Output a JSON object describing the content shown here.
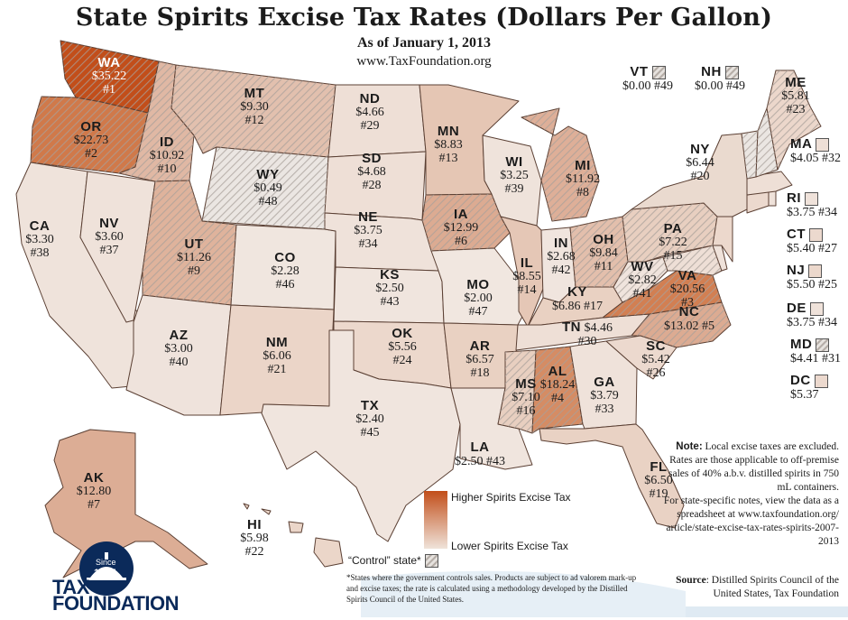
{
  "title": "State Spirits Excise Tax Rates (Dollars Per Gallon)",
  "subtitle": "As of January 1, 2013",
  "url": "www.TaxFoundation.org",
  "states": {
    "WA": {
      "ab": "WA",
      "rate": "$35.22",
      "rank": "#1",
      "color": "#c24e1a"
    },
    "OR": {
      "ab": "OR",
      "rate": "$22.73",
      "rank": "#2",
      "color": "#d0794a"
    },
    "ID": {
      "ab": "ID",
      "rate": "$10.92",
      "rank": "#10",
      "color": "#e0b8a4"
    },
    "MT": {
      "ab": "MT",
      "rate": "$9.30",
      "rank": "#12",
      "color": "#e2c0ae"
    },
    "WY": {
      "ab": "WY",
      "rate": "$0.49",
      "rank": "#48",
      "color": "#ebe6e2"
    },
    "ND": {
      "ab": "ND",
      "rate": "$4.66",
      "rank": "#29",
      "color": "#eedfd6"
    },
    "SD": {
      "ab": "SD",
      "rate": "$4.68",
      "rank": "#28",
      "color": "#eedfd6"
    },
    "NE": {
      "ab": "NE",
      "rate": "$3.75",
      "rank": "#34",
      "color": "#efe2da"
    },
    "KS": {
      "ab": "KS",
      "rate": "$2.50",
      "rank": "#43",
      "color": "#f0e5de"
    },
    "OK": {
      "ab": "OK",
      "rate": "$5.56",
      "rank": "#24",
      "color": "#ecd8cc"
    },
    "TX": {
      "ab": "TX",
      "rate": "$2.40",
      "rank": "#45",
      "color": "#f0e5de"
    },
    "CA": {
      "ab": "CA",
      "rate": "$3.30",
      "rank": "#38",
      "color": "#efe3db"
    },
    "NV": {
      "ab": "NV",
      "rate": "$3.60",
      "rank": "#37",
      "color": "#efe2da"
    },
    "UT": {
      "ab": "UT",
      "rate": "$11.26",
      "rank": "#9",
      "color": "#dfb39c"
    },
    "CO": {
      "ab": "CO",
      "rate": "$2.28",
      "rank": "#46",
      "color": "#f0e6df"
    },
    "AZ": {
      "ab": "AZ",
      "rate": "$3.00",
      "rank": "#40",
      "color": "#efe3dc"
    },
    "NM": {
      "ab": "NM",
      "rate": "$6.06",
      "rank": "#21",
      "color": "#ebd5c8"
    },
    "MN": {
      "ab": "MN",
      "rate": "$8.83",
      "rank": "#13",
      "color": "#e5c6b4"
    },
    "IA": {
      "ab": "IA",
      "rate": "$12.99",
      "rank": "#6",
      "color": "#dcab92"
    },
    "MO": {
      "ab": "MO",
      "rate": "$2.00",
      "rank": "#47",
      "color": "#f1e7e0"
    },
    "AR": {
      "ab": "AR",
      "rate": "$6.57",
      "rank": "#18",
      "color": "#e9d1c2"
    },
    "LA": {
      "ab": "LA",
      "rate": "$2.50",
      "rank": "#43",
      "color": "#f0e5de"
    },
    "WI": {
      "ab": "WI",
      "rate": "$3.25",
      "rank": "#39",
      "color": "#efe3db"
    },
    "IL": {
      "ab": "IL",
      "rate": "$8.55",
      "rank": "#14",
      "color": "#e5c7b6"
    },
    "MI": {
      "ab": "MI",
      "rate": "$11.92",
      "rank": "#8",
      "color": "#deaf98"
    },
    "IN": {
      "ab": "IN",
      "rate": "$2.68",
      "rank": "#42",
      "color": "#f0e5de"
    },
    "OH": {
      "ab": "OH",
      "rate": "$9.84",
      "rank": "#11",
      "color": "#e3bfac"
    },
    "KY": {
      "ab": "KY",
      "rate": "$6.86",
      "rank": "#17",
      "color": "#e9d1c2"
    },
    "TN": {
      "ab": "TN",
      "rate": "$4.46",
      "rank": "#30",
      "color": "#eedfd6"
    },
    "MS": {
      "ab": "MS",
      "rate": "$7.10",
      "rank": "#16",
      "color": "#e8cfc0"
    },
    "AL": {
      "ab": "AL",
      "rate": "$18.24",
      "rank": "#4",
      "color": "#d58c64"
    },
    "GA": {
      "ab": "GA",
      "rate": "$3.79",
      "rank": "#33",
      "color": "#efe2da"
    },
    "FL": {
      "ab": "FL",
      "rate": "$6.50",
      "rank": "#19",
      "color": "#e9d2c4"
    },
    "SC": {
      "ab": "SC",
      "rate": "$5.42",
      "rank": "#26",
      "color": "#ecd9ce"
    },
    "NC": {
      "ab": "NC",
      "rate": "$13.02",
      "rank": "#5",
      "color": "#dcab92"
    },
    "VA": {
      "ab": "VA",
      "rate": "$20.56",
      "rank": "#3",
      "color": "#d27f52"
    },
    "WV": {
      "ab": "WV",
      "rate": "$2.82",
      "rank": "#41",
      "color": "#f0e4dd"
    },
    "PA": {
      "ab": "PA",
      "rate": "$7.22",
      "rank": "#15",
      "color": "#e8cfc0"
    },
    "NY": {
      "ab": "NY",
      "rate": "$6.44",
      "rank": "#20",
      "color": "#eadacf"
    },
    "ME": {
      "ab": "ME",
      "rate": "$5.81",
      "rank": "#23",
      "color": "#ecd7cb"
    },
    "VT": {
      "ab": "VT",
      "rate": "$0.00",
      "rank": "#49",
      "color": "#ebe6e2"
    },
    "NH": {
      "ab": "NH",
      "rate": "$0.00",
      "rank": "#49",
      "color": "#ebe6e2"
    },
    "MA": {
      "ab": "MA",
      "rate": "$4.05",
      "rank": "#32",
      "color": "#eedfd6"
    },
    "RI": {
      "ab": "RI",
      "rate": "$3.75",
      "rank": "#34",
      "color": "#efe2da"
    },
    "CT": {
      "ab": "CT",
      "rate": "$5.40",
      "rank": "#27",
      "color": "#ecd9ce"
    },
    "NJ": {
      "ab": "NJ",
      "rate": "$5.50",
      "rank": "#25",
      "color": "#ecd8cc"
    },
    "DE": {
      "ab": "DE",
      "rate": "$3.75",
      "rank": "#34",
      "color": "#efe2da"
    },
    "MD": {
      "ab": "MD",
      "rate": "$4.41",
      "rank": "#31",
      "color": "#eedfd6"
    },
    "DC": {
      "ab": "DC",
      "rate": "$5.37",
      "color": "#ecd9ce"
    },
    "AK": {
      "ab": "AK",
      "rate": "$12.80",
      "rank": "#7",
      "color": "#dcad95"
    },
    "HI": {
      "ab": "HI",
      "rate": "$5.98",
      "rank": "#22",
      "color": "#ebd6c9"
    }
  },
  "legend": {
    "high": "Higher Spirits Excise Tax",
    "low": "Lower Spirits Excise Tax",
    "control": "“Control” state*",
    "footnote": "*States where the government controls sales. Products are subject to ad valorem mark-up and excise taxes; the rate is calculated using a methodology developed by the Distilled Spirits Council of the United States."
  },
  "note": {
    "label": "Note:",
    "text": "Local excise taxes are excluded. Rates are those applicable to off-premise sales of 40% a.b.v. distilled spirits in 750 mL containers.",
    "specific": "For state-specific notes, view the data as a spreadsheet at www.taxfoundation.org/ article/state-excise-tax-rates-spirits-2007-2013"
  },
  "source": {
    "label": "Source",
    "text": ": Distilled Spirits Council of the United States, Tax Foundation"
  },
  "logo": {
    "since": "Since",
    "year": "1937",
    "line1": "TAX",
    "line2": "FOUNDATION"
  },
  "colors": {
    "high": "#c24e1a",
    "low": "#efe3da",
    "border": "#5b4034",
    "ocean": "#dfeaf3",
    "logo": "#0b2a5a"
  }
}
